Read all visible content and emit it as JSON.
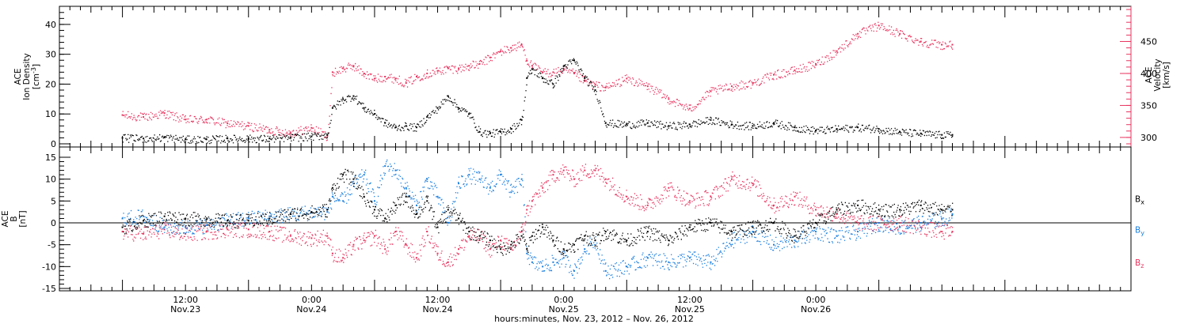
{
  "chart_data": [
    {
      "type": "scatter",
      "panel": "top",
      "left_axis": {
        "title_lines": [
          "ACE",
          "Ion Density"
        ],
        "unit_base": "[cm",
        "unit_sup": "-3",
        "unit_end": "]",
        "ylim": [
          0,
          45
        ],
        "ticks": [
          0,
          10,
          20,
          30,
          40
        ],
        "tick_labels": [
          "0",
          "10",
          "20",
          "30",
          "40"
        ]
      },
      "right_axis": {
        "title_lines": [
          "ACE",
          "Velocity",
          "[km/s]"
        ],
        "ylim": [
          290,
          500
        ],
        "ticks": [
          300,
          350,
          400,
          450
        ],
        "tick_labels": [
          "300",
          "350",
          "400",
          "450"
        ],
        "color": "#e8345f"
      },
      "series": [
        {
          "color": "#000000",
          "axis": "left",
          "x": [
            0,
            2,
            4,
            6,
            8,
            10,
            12,
            14,
            16,
            18,
            19.5,
            20,
            21,
            22,
            23,
            24,
            25,
            26,
            27,
            28,
            29,
            30,
            31,
            32,
            33,
            34,
            35,
            36,
            37,
            38,
            38.5,
            39,
            40,
            41,
            42,
            43,
            44,
            45,
            46,
            48,
            50,
            52,
            54,
            56,
            58,
            60,
            62,
            64,
            66,
            68,
            70,
            72,
            74,
            76,
            78,
            79
          ],
          "y": [
            2,
            1.8,
            2.2,
            1.5,
            1.5,
            1.8,
            1.8,
            1.8,
            2.2,
            2.5,
            3,
            12,
            15,
            16,
            12,
            10,
            7,
            5.5,
            6,
            5.5,
            9,
            12,
            16,
            12,
            10,
            4,
            3.5,
            4,
            5,
            8,
            22,
            25,
            22,
            20,
            26,
            28,
            22,
            18,
            7,
            6.5,
            7,
            6,
            6.5,
            8,
            6.5,
            6,
            7,
            5.5,
            4.5,
            5,
            5.5,
            5,
            4,
            3.5,
            3,
            3
          ]
        },
        {
          "color": "#e8345f",
          "axis": "right",
          "x": [
            0,
            2,
            4,
            6,
            8,
            10,
            12,
            14,
            16,
            18,
            19.5,
            20,
            21,
            22,
            23,
            24,
            25,
            26,
            27,
            28,
            29,
            30,
            31,
            32,
            33,
            34,
            35,
            36,
            37,
            38,
            38.5,
            39,
            40,
            41,
            42,
            43,
            44,
            45,
            46,
            48,
            50,
            52,
            54,
            56,
            58,
            60,
            62,
            64,
            66,
            68,
            70,
            72,
            74,
            76,
            78,
            79
          ],
          "y": [
            335,
            332,
            338,
            328,
            328,
            322,
            318,
            312,
            308,
            315,
            302,
            402,
            408,
            412,
            400,
            392,
            395,
            392,
            385,
            395,
            400,
            404,
            408,
            408,
            412,
            415,
            425,
            435,
            440,
            445,
            420,
            412,
            402,
            402,
            405,
            400,
            388,
            382,
            378,
            392,
            380,
            360,
            345,
            372,
            380,
            385,
            398,
            405,
            415,
            435,
            462,
            475,
            462,
            450,
            445,
            445
          ]
        }
      ]
    },
    {
      "type": "scatter",
      "panel": "bottom",
      "left_axis": {
        "title_lines": [
          "ACE",
          "B",
          "[nT]"
        ],
        "ylim": [
          -15,
          15
        ],
        "ticks": [
          -15,
          -10,
          -5,
          0,
          5,
          10,
          15
        ],
        "tick_labels": [
          "-15",
          "-10",
          "-5",
          "0",
          "5",
          "10",
          "15"
        ]
      },
      "legend": {
        "placement": "right",
        "entries": [
          {
            "base": "B",
            "sub": "x",
            "color": "#000000"
          },
          {
            "base": "B",
            "sub": "y",
            "color": "#1a7fe0"
          },
          {
            "base": "B",
            "sub": "z",
            "color": "#e8345f"
          }
        ]
      },
      "series": [
        {
          "name": "Bx",
          "color": "#000000",
          "x": [
            0,
            2,
            4,
            6,
            8,
            10,
            12,
            14,
            16,
            18,
            19.5,
            20,
            21,
            22,
            23,
            24,
            25,
            26,
            27,
            28,
            29,
            30,
            31,
            32,
            33,
            34,
            35,
            36,
            37,
            38,
            38.5,
            39,
            40,
            41,
            42,
            43,
            44,
            45,
            46,
            48,
            50,
            52,
            54,
            56,
            58,
            60,
            62,
            64,
            66,
            68,
            70,
            72,
            74,
            76,
            78,
            79
          ],
          "y": [
            -1,
            0.5,
            1.5,
            1,
            0.8,
            0.5,
            0.5,
            1,
            2,
            2.5,
            3,
            8,
            11,
            10,
            6,
            3,
            1,
            4,
            6,
            2,
            5,
            -1,
            3,
            1,
            -2,
            -3,
            -4,
            -6,
            -5,
            -3,
            -6,
            -3,
            -1,
            -4,
            -6,
            -5,
            -3,
            -4,
            -2,
            -4,
            -2,
            -4,
            -1,
            0,
            -2,
            -1,
            0,
            -3,
            0,
            3,
            4,
            3,
            3,
            4,
            3,
            3
          ]
        },
        {
          "name": "By",
          "color": "#1a7fe0",
          "x": [
            0,
            2,
            4,
            6,
            8,
            10,
            12,
            14,
            16,
            18,
            19.5,
            20,
            21,
            22,
            23,
            24,
            25,
            26,
            27,
            28,
            29,
            30,
            31,
            32,
            33,
            34,
            35,
            36,
            37,
            38,
            38.5,
            39,
            40,
            41,
            42,
            43,
            44,
            45,
            46,
            48,
            50,
            52,
            54,
            56,
            58,
            60,
            62,
            64,
            66,
            68,
            70,
            72,
            74,
            76,
            78,
            79
          ],
          "y": [
            1,
            1.5,
            -1,
            -1,
            -0.5,
            0.5,
            1,
            1.5,
            2,
            2.5,
            2.5,
            6,
            5,
            9,
            11,
            5,
            13,
            12,
            8,
            4,
            10,
            6,
            0,
            9,
            11,
            10,
            8,
            11,
            7,
            10,
            -7,
            -9,
            -10,
            -9,
            -8,
            -11,
            -6,
            -4,
            -11,
            -10,
            -8,
            -9,
            -8,
            -9,
            -4,
            -2,
            -5,
            -4,
            -2,
            -3,
            -2,
            0,
            -1,
            0,
            1,
            2
          ]
        },
        {
          "name": "Bz",
          "color": "#e8345f",
          "x": [
            0,
            2,
            4,
            6,
            8,
            10,
            12,
            14,
            16,
            18,
            19.5,
            20,
            21,
            22,
            23,
            24,
            25,
            26,
            27,
            28,
            29,
            30,
            31,
            32,
            33,
            34,
            35,
            36,
            37,
            38,
            38.5,
            39,
            40,
            41,
            42,
            43,
            44,
            45,
            46,
            48,
            50,
            52,
            54,
            56,
            58,
            60,
            62,
            64,
            66,
            68,
            70,
            72,
            74,
            76,
            78,
            79
          ],
          "y": [
            -2,
            -2.5,
            -1.5,
            -2.5,
            -2,
            -1.5,
            -1.5,
            -2,
            -3,
            -3.5,
            -3,
            -7,
            -8,
            -5,
            -4,
            -3,
            -6,
            -2,
            -5,
            -8,
            -2,
            -7,
            -9,
            -6,
            -3,
            -3,
            -6,
            -4,
            -6,
            -2,
            3,
            5,
            8,
            11,
            12,
            10,
            12,
            12,
            10,
            6,
            4,
            8,
            5,
            6,
            10,
            9,
            4,
            6,
            3,
            2,
            0,
            0,
            0,
            -1,
            -2,
            -2
          ]
        }
      ]
    }
  ],
  "time_axis": {
    "xlim": [
      -6,
      96
    ],
    "major_ticks": [
      6,
      30,
      54,
      78
    ],
    "tick_time_labels": [
      "12:00",
      "0:00",
      "12:00",
      "0:00",
      "12:00",
      "0:00"
    ],
    "tick_date_labels": [
      "Nov.23",
      "Nov.24",
      "Nov.24",
      "Nov.25",
      "Nov.25",
      "Nov.26"
    ],
    "tick_hours": [
      6,
      18,
      30,
      42,
      54,
      66
    ],
    "title": "hours:minutes, Nov. 23, 2012 – Nov. 26, 2012"
  }
}
